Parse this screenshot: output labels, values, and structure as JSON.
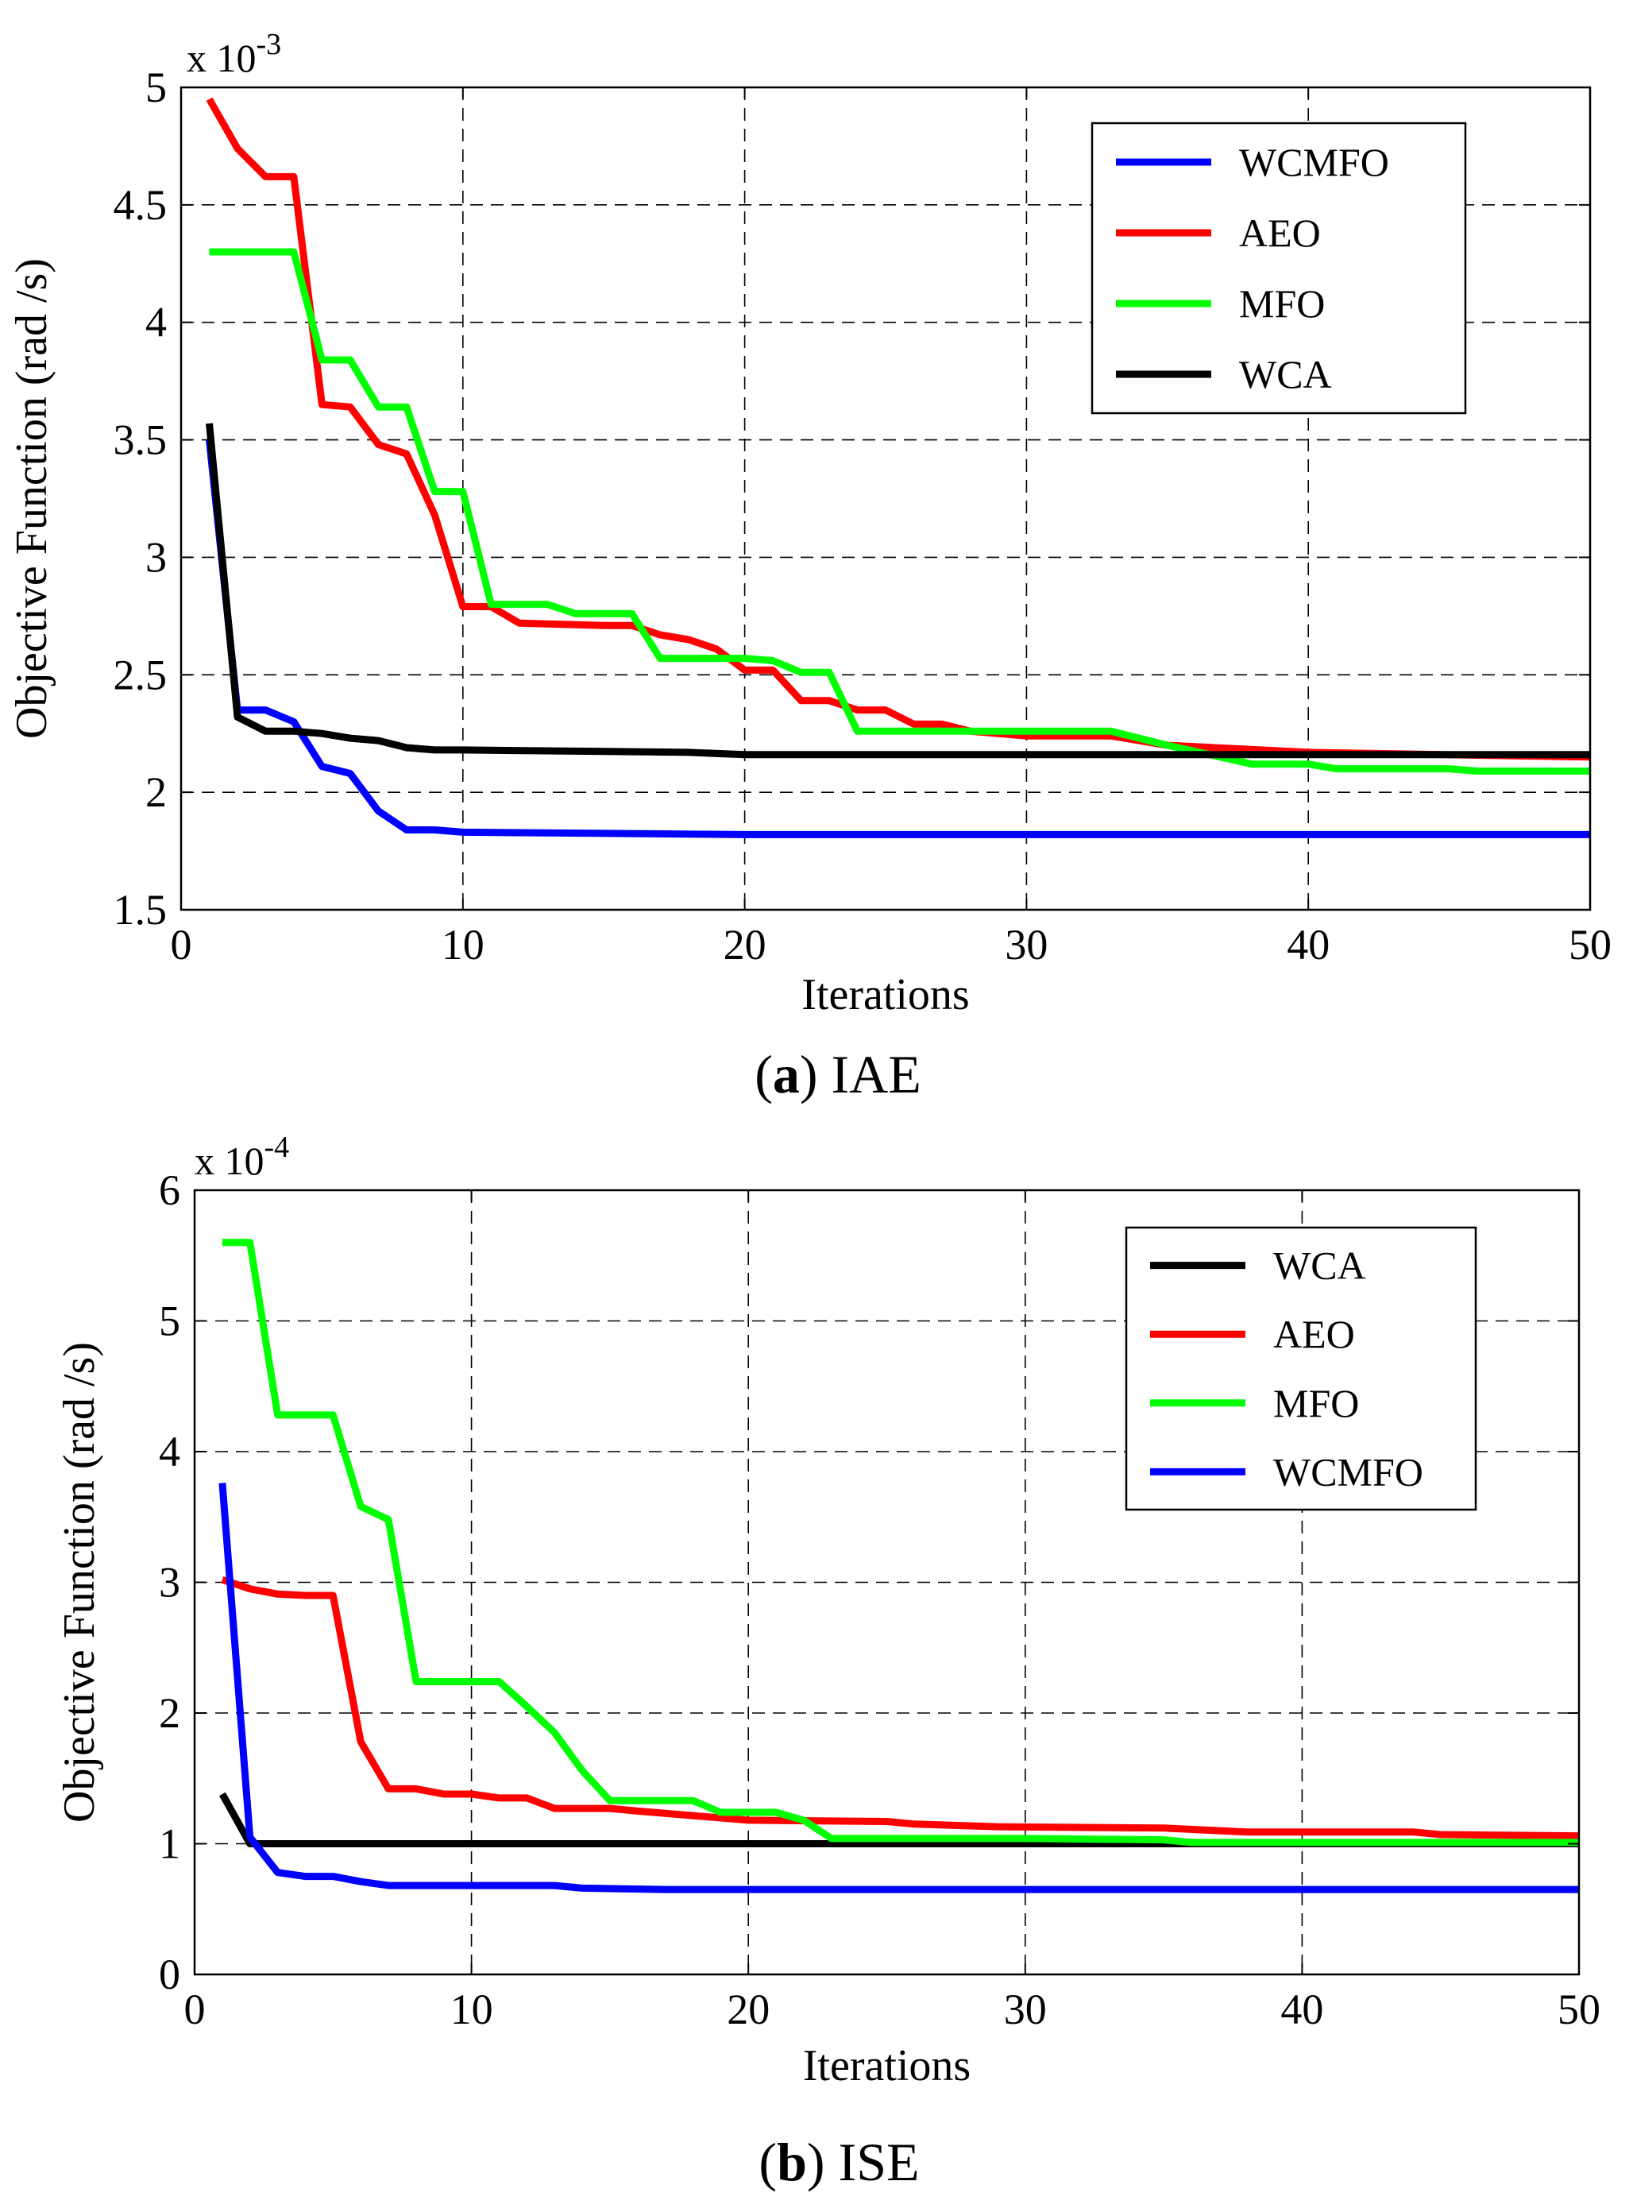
{
  "chart_data": [
    {
      "id": "iae",
      "type": "line",
      "caption_label": "a",
      "caption_text": "IAE",
      "caption_open": "(",
      "caption_close": ")",
      "xlabel": "Iterations",
      "ylabel": "Objective Function (rad /s)",
      "xlim": [
        0,
        50
      ],
      "ylim": [
        1.5,
        5
      ],
      "xticks": [
        0,
        10,
        20,
        30,
        40,
        50
      ],
      "yticks": [
        1.5,
        2,
        2.5,
        3,
        3.5,
        4,
        4.5,
        5
      ],
      "ytick_labels": [
        "1.5",
        "2",
        "2.5",
        "3",
        "3.5",
        "4",
        "4.5",
        "5"
      ],
      "xtick_labels": [
        "0",
        "10",
        "20",
        "30",
        "40",
        "50"
      ],
      "scale_prefix": "x 10",
      "scale_exponent": "-3",
      "grid": true,
      "legend_position": "top-right",
      "legend_order": [
        "WCMFO",
        "AEO",
        "MFO",
        "WCA"
      ],
      "series": [
        {
          "name": "WCMFO",
          "color": "#0000ff",
          "x": [
            1,
            2,
            3,
            4,
            5,
            6,
            7,
            8,
            9,
            10,
            20,
            50
          ],
          "y": [
            3.5,
            2.35,
            2.35,
            2.3,
            2.11,
            2.08,
            1.92,
            1.84,
            1.84,
            1.83,
            1.82,
            1.82
          ]
        },
        {
          "name": "AEO",
          "color": "#ff0000",
          "x": [
            1,
            2,
            3,
            4,
            5,
            6,
            7,
            8,
            9,
            10,
            11,
            12,
            15,
            16,
            17,
            18,
            19,
            20,
            21,
            22,
            23,
            24,
            25,
            26,
            27,
            28,
            30,
            33,
            35,
            40,
            50
          ],
          "y": [
            4.95,
            4.74,
            4.62,
            4.62,
            3.65,
            3.64,
            3.48,
            3.44,
            3.18,
            2.79,
            2.79,
            2.72,
            2.71,
            2.71,
            2.67,
            2.65,
            2.61,
            2.52,
            2.52,
            2.39,
            2.39,
            2.35,
            2.35,
            2.29,
            2.29,
            2.26,
            2.24,
            2.24,
            2.2,
            2.17,
            2.15
          ]
        },
        {
          "name": "MFO",
          "color": "#00ff00",
          "x": [
            1,
            2,
            3,
            4,
            5,
            6,
            7,
            8,
            9,
            10,
            11,
            12,
            13,
            14,
            15,
            16,
            17,
            18,
            19,
            20,
            21,
            22,
            23,
            24,
            25,
            30,
            33,
            35,
            38,
            40,
            41,
            45,
            46,
            50
          ],
          "y": [
            4.3,
            4.3,
            4.3,
            4.3,
            3.84,
            3.84,
            3.64,
            3.64,
            3.28,
            3.28,
            2.8,
            2.8,
            2.8,
            2.76,
            2.76,
            2.76,
            2.57,
            2.57,
            2.57,
            2.57,
            2.56,
            2.51,
            2.51,
            2.26,
            2.26,
            2.26,
            2.26,
            2.2,
            2.12,
            2.12,
            2.1,
            2.1,
            2.09,
            2.09
          ]
        },
        {
          "name": "WCA",
          "color": "#000000",
          "x": [
            1,
            2,
            3,
            4,
            5,
            6,
            7,
            8,
            9,
            10,
            18,
            20,
            50
          ],
          "y": [
            3.57,
            2.32,
            2.26,
            2.26,
            2.25,
            2.23,
            2.22,
            2.19,
            2.18,
            2.18,
            2.17,
            2.16,
            2.16
          ]
        }
      ]
    },
    {
      "id": "ise",
      "type": "line",
      "caption_label": "b",
      "caption_text": "ISE",
      "caption_open": "(",
      "caption_close": ")",
      "xlabel": "Iterations",
      "ylabel": "Objective Function (rad /s)",
      "xlim": [
        0,
        50
      ],
      "ylim": [
        0,
        6
      ],
      "xticks": [
        0,
        10,
        20,
        30,
        40,
        50
      ],
      "yticks": [
        0,
        1,
        2,
        3,
        4,
        5,
        6
      ],
      "ytick_labels": [
        "0",
        "1",
        "2",
        "3",
        "4",
        "5",
        "6"
      ],
      "xtick_labels": [
        "0",
        "10",
        "20",
        "30",
        "40",
        "50"
      ],
      "scale_prefix": "x 10",
      "scale_exponent": "-4",
      "grid": true,
      "legend_position": "top-right",
      "legend_order": [
        "WCA",
        "AEO",
        "MFO",
        "WCMFO"
      ],
      "series": [
        {
          "name": "WCA",
          "color": "#000000",
          "x": [
            1,
            2,
            50
          ],
          "y": [
            1.38,
            1.0,
            1.0
          ]
        },
        {
          "name": "AEO",
          "color": "#ff0000",
          "x": [
            1,
            2,
            3,
            4,
            5,
            6,
            7,
            8,
            9,
            10,
            11,
            12,
            13,
            15,
            16,
            20,
            25,
            26,
            29,
            35,
            38,
            44,
            45,
            50
          ],
          "y": [
            3.02,
            2.95,
            2.91,
            2.9,
            2.9,
            1.78,
            1.42,
            1.42,
            1.38,
            1.38,
            1.35,
            1.35,
            1.27,
            1.27,
            1.25,
            1.18,
            1.17,
            1.15,
            1.13,
            1.12,
            1.09,
            1.09,
            1.07,
            1.06
          ]
        },
        {
          "name": "MFO",
          "color": "#00ff00",
          "x": [
            1,
            2,
            3,
            4,
            5,
            6,
            7,
            8,
            9,
            10,
            11,
            12,
            13,
            14,
            15,
            16,
            17,
            18,
            19,
            20,
            21,
            22,
            23,
            30,
            35,
            36,
            50
          ],
          "y": [
            5.6,
            5.6,
            4.28,
            4.28,
            4.28,
            3.58,
            3.48,
            2.24,
            2.24,
            2.24,
            2.24,
            2.05,
            1.85,
            1.56,
            1.33,
            1.33,
            1.33,
            1.33,
            1.24,
            1.24,
            1.24,
            1.18,
            1.04,
            1.04,
            1.03,
            1.01,
            1.01
          ]
        },
        {
          "name": "WCMFO",
          "color": "#0000ff",
          "x": [
            1,
            2,
            3,
            4,
            5,
            6,
            7,
            10,
            13,
            14,
            17,
            50
          ],
          "y": [
            3.76,
            1.05,
            0.78,
            0.75,
            0.75,
            0.71,
            0.68,
            0.68,
            0.68,
            0.66,
            0.65,
            0.65
          ]
        }
      ]
    }
  ]
}
